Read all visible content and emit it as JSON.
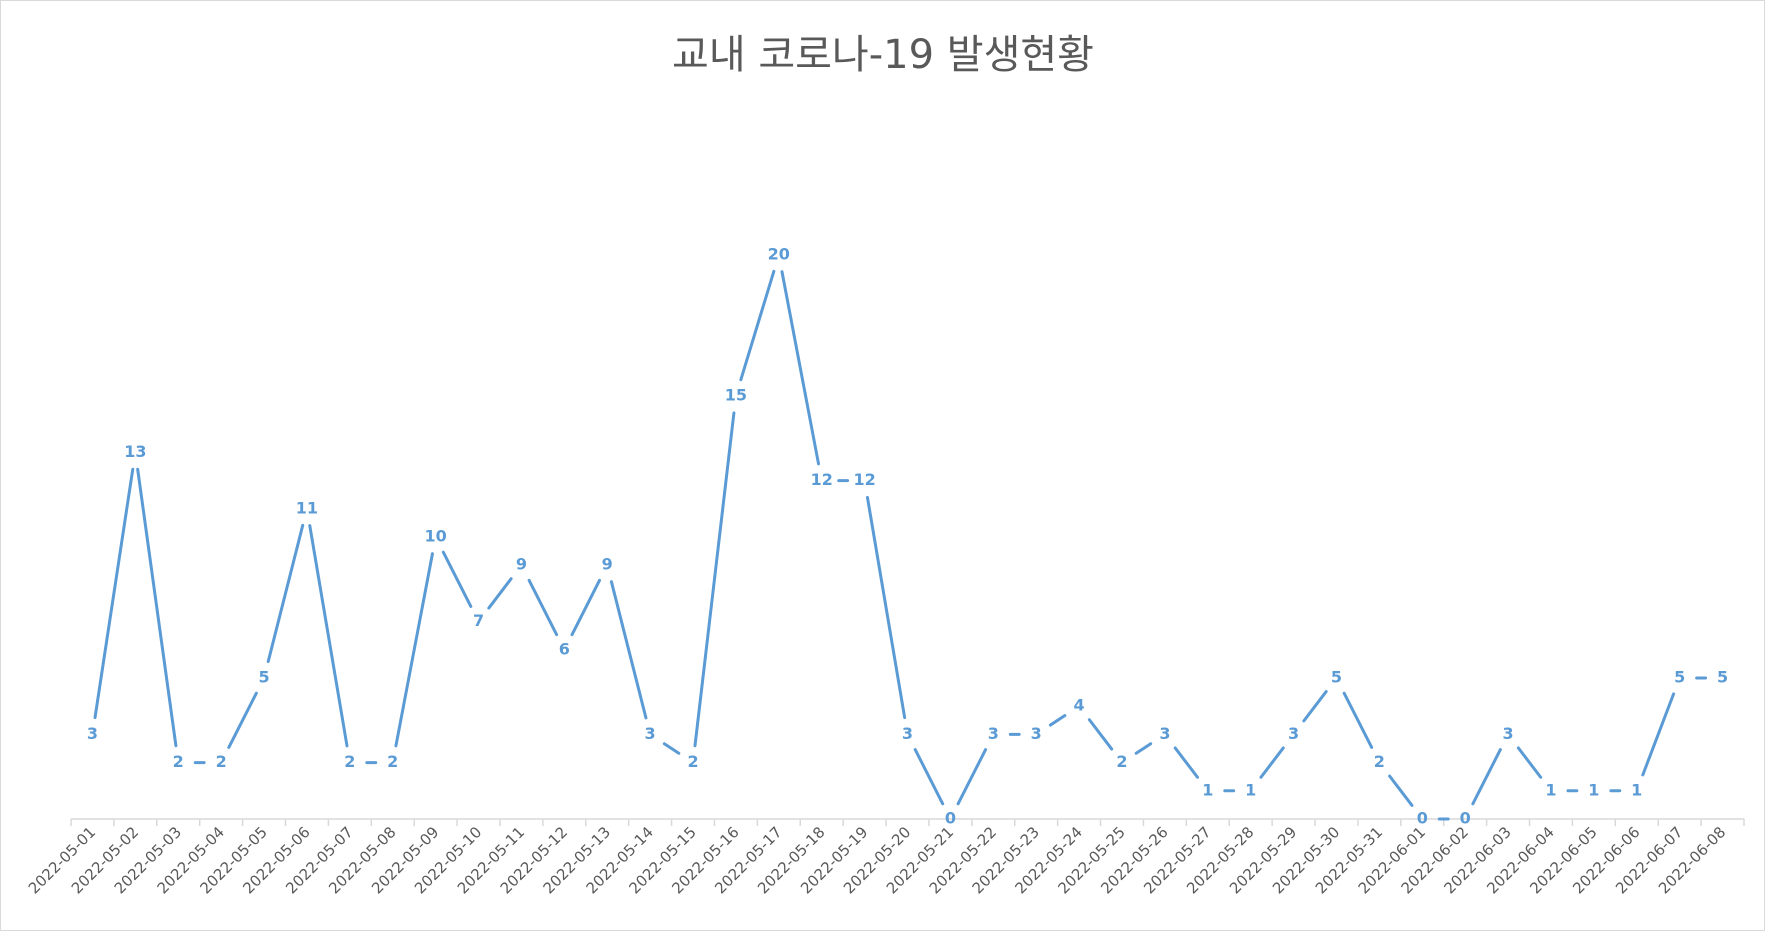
{
  "chart_data": {
    "type": "line",
    "title": "교내 코로나-19 발생현황",
    "xlabel": "",
    "ylabel": "",
    "ylim": [
      0,
      20
    ],
    "grid": false,
    "legend": "none",
    "data_labels": true,
    "x": [
      "2022-05-01",
      "2022-05-02",
      "2022-05-03",
      "2022-05-04",
      "2022-05-05",
      "2022-05-06",
      "2022-05-07",
      "2022-05-08",
      "2022-05-09",
      "2022-05-10",
      "2022-05-11",
      "2022-05-12",
      "2022-05-13",
      "2022-05-14",
      "2022-05-15",
      "2022-05-16",
      "2022-05-17",
      "2022-05-18",
      "2022-05-19",
      "2022-05-20",
      "2022-05-21",
      "2022-05-22",
      "2022-05-23",
      "2022-05-24",
      "2022-05-25",
      "2022-05-26",
      "2022-05-27",
      "2022-05-28",
      "2022-05-29",
      "2022-05-30",
      "2022-05-31",
      "2022-06-01",
      "2022-06-02",
      "2022-06-03",
      "2022-06-04",
      "2022-06-05",
      "2022-06-06",
      "2022-06-07",
      "2022-06-08"
    ],
    "series": [
      {
        "color": "#5B9BD5",
        "values": [
          3,
          13,
          2,
          2,
          5,
          11,
          2,
          2,
          10,
          7,
          9,
          6,
          9,
          3,
          2,
          15,
          20,
          12,
          12,
          3,
          0,
          3,
          3,
          4,
          2,
          3,
          1,
          1,
          3,
          5,
          2,
          0,
          0,
          3,
          1,
          1,
          1,
          5,
          5
        ]
      }
    ]
  }
}
